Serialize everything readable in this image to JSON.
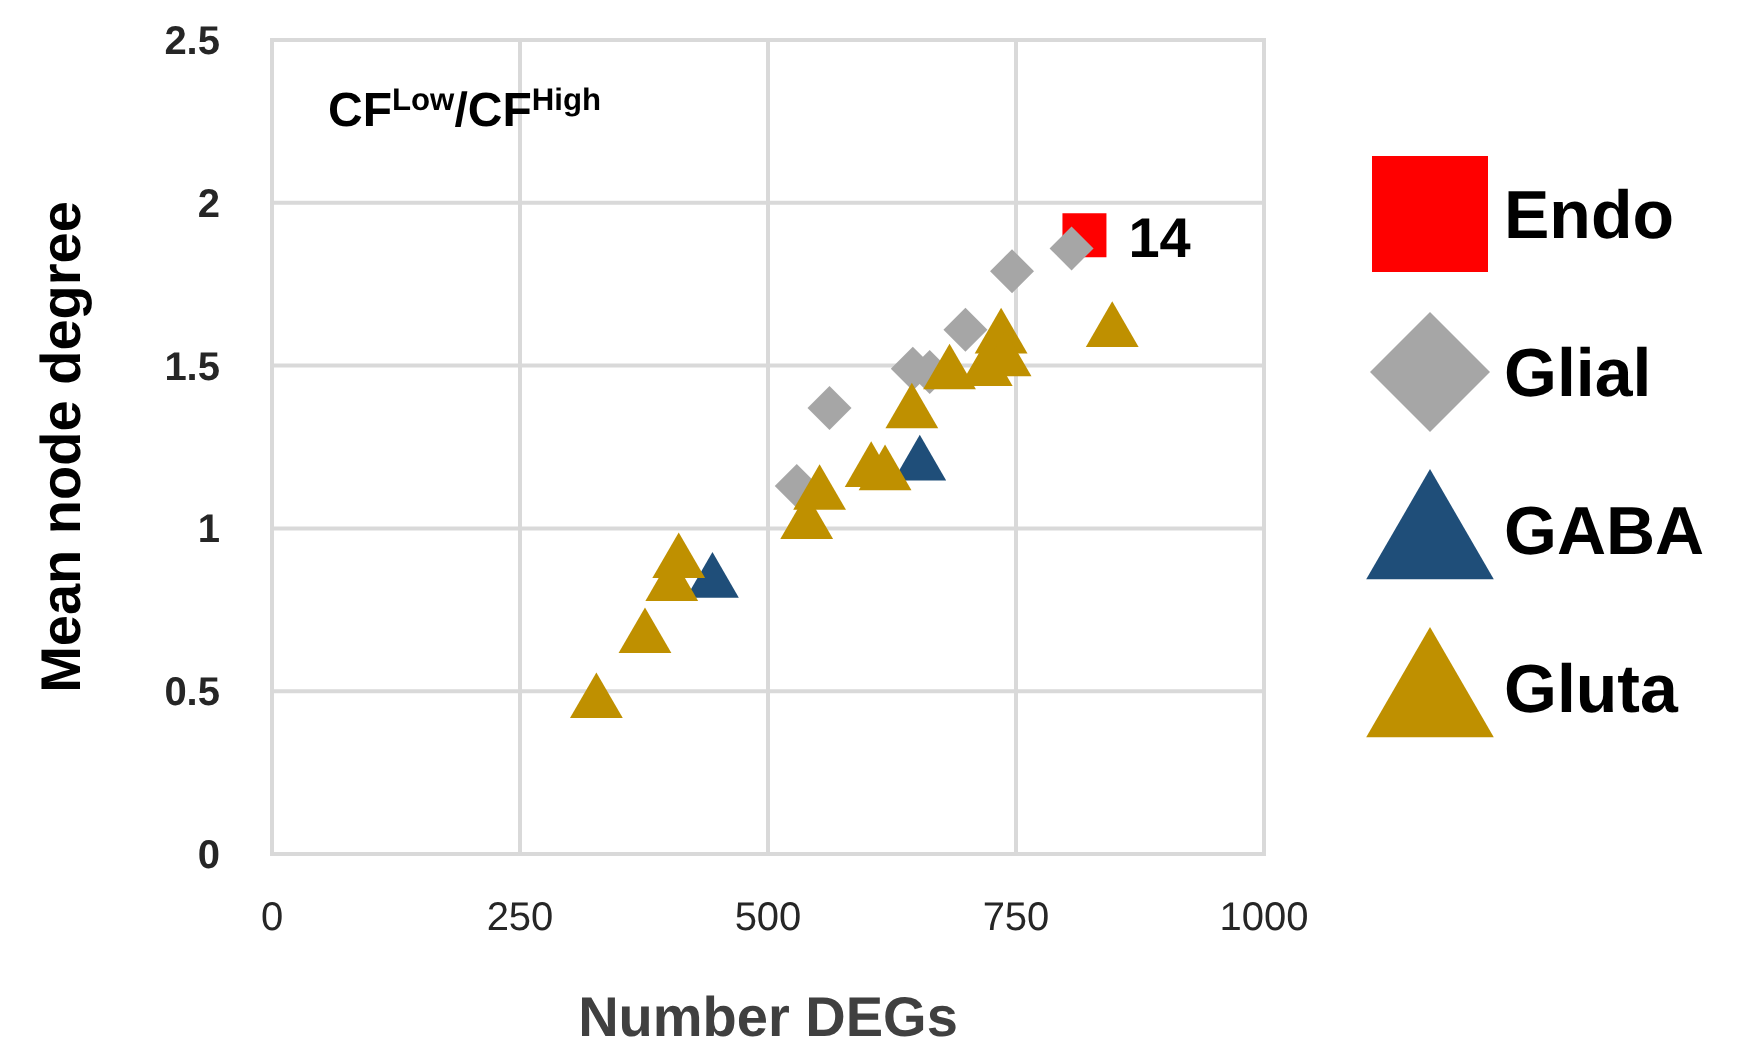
{
  "chart_data": {
    "type": "scatter",
    "title": "CF$^{Low}$/CF$^{High}$",
    "xlabel": "Number DEGs",
    "ylabel": "Mean node degree",
    "xlim": [
      0,
      1000
    ],
    "xticks": [
      0,
      250,
      500,
      750,
      1000
    ],
    "ylim": [
      0,
      2.5
    ],
    "yticks": [
      0,
      0.5,
      1,
      1.5,
      2,
      2.5
    ],
    "grid": true,
    "legend": "right",
    "annotations": [
      {
        "text": "14",
        "x": 819,
        "y": 1.9
      }
    ],
    "series": [
      {
        "name": "Endo",
        "color": "#ff0000",
        "marker": "square",
        "x": [
          819
        ],
        "values": [
          1.9
        ]
      },
      {
        "name": "Glial",
        "color": "#a6a6a6",
        "marker": "diamond",
        "x": [
          806,
          746,
          699,
          646,
          663,
          562,
          529
        ],
        "values": [
          1.86,
          1.79,
          1.61,
          1.49,
          1.48,
          1.37,
          1.13
        ]
      },
      {
        "name": "GABA",
        "color": "#1f4e79",
        "marker": "triangle",
        "x": [
          653,
          444
        ],
        "values": [
          1.21,
          0.85
        ]
      },
      {
        "name": "Gluta",
        "color": "#bf9000",
        "marker": "triangle",
        "x": [
          847,
          735,
          739,
          720,
          683,
          645,
          604,
          618,
          552,
          539,
          410,
          403,
          376,
          327
        ],
        "values": [
          1.62,
          1.6,
          1.53,
          1.5,
          1.49,
          1.37,
          1.19,
          1.18,
          1.12,
          1.03,
          0.91,
          0.84,
          0.68,
          0.48
        ]
      }
    ]
  }
}
